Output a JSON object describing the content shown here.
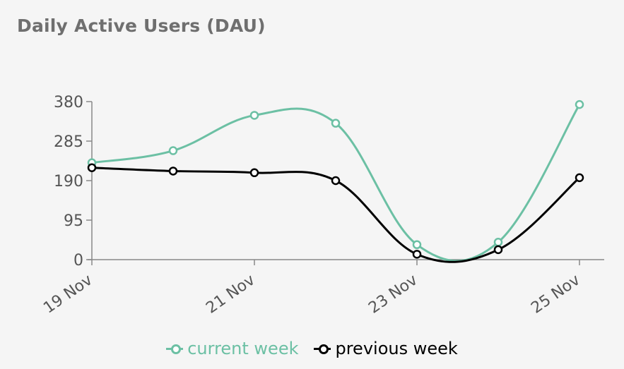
{
  "title": "Daily Active Users (DAU)",
  "chart_data": {
    "type": "line",
    "title": "Daily Active Users (DAU)",
    "xlabel": "",
    "ylabel": "",
    "x": [
      "19 Nov",
      "20 Nov",
      "21 Nov",
      "22 Nov",
      "23 Nov",
      "24 Nov",
      "25 Nov"
    ],
    "x_tick_labels": [
      "19 Nov",
      "21 Nov",
      "23 Nov",
      "25 Nov"
    ],
    "y_ticks": [
      0,
      95,
      190,
      285,
      380
    ],
    "ylim": [
      0,
      380
    ],
    "series": [
      {
        "name": "current week",
        "color": "#6cc0a4",
        "values": [
          233,
          262,
          347,
          328,
          36,
          42,
          373
        ]
      },
      {
        "name": "previous week",
        "color": "#000000",
        "values": [
          221,
          213,
          209,
          190,
          13,
          24,
          197
        ]
      }
    ],
    "grid": false,
    "legend_position": "bottom"
  },
  "legend": [
    {
      "label": "current week",
      "color": "#6cc0a4"
    },
    {
      "label": "previous week",
      "color": "#000000"
    }
  ]
}
